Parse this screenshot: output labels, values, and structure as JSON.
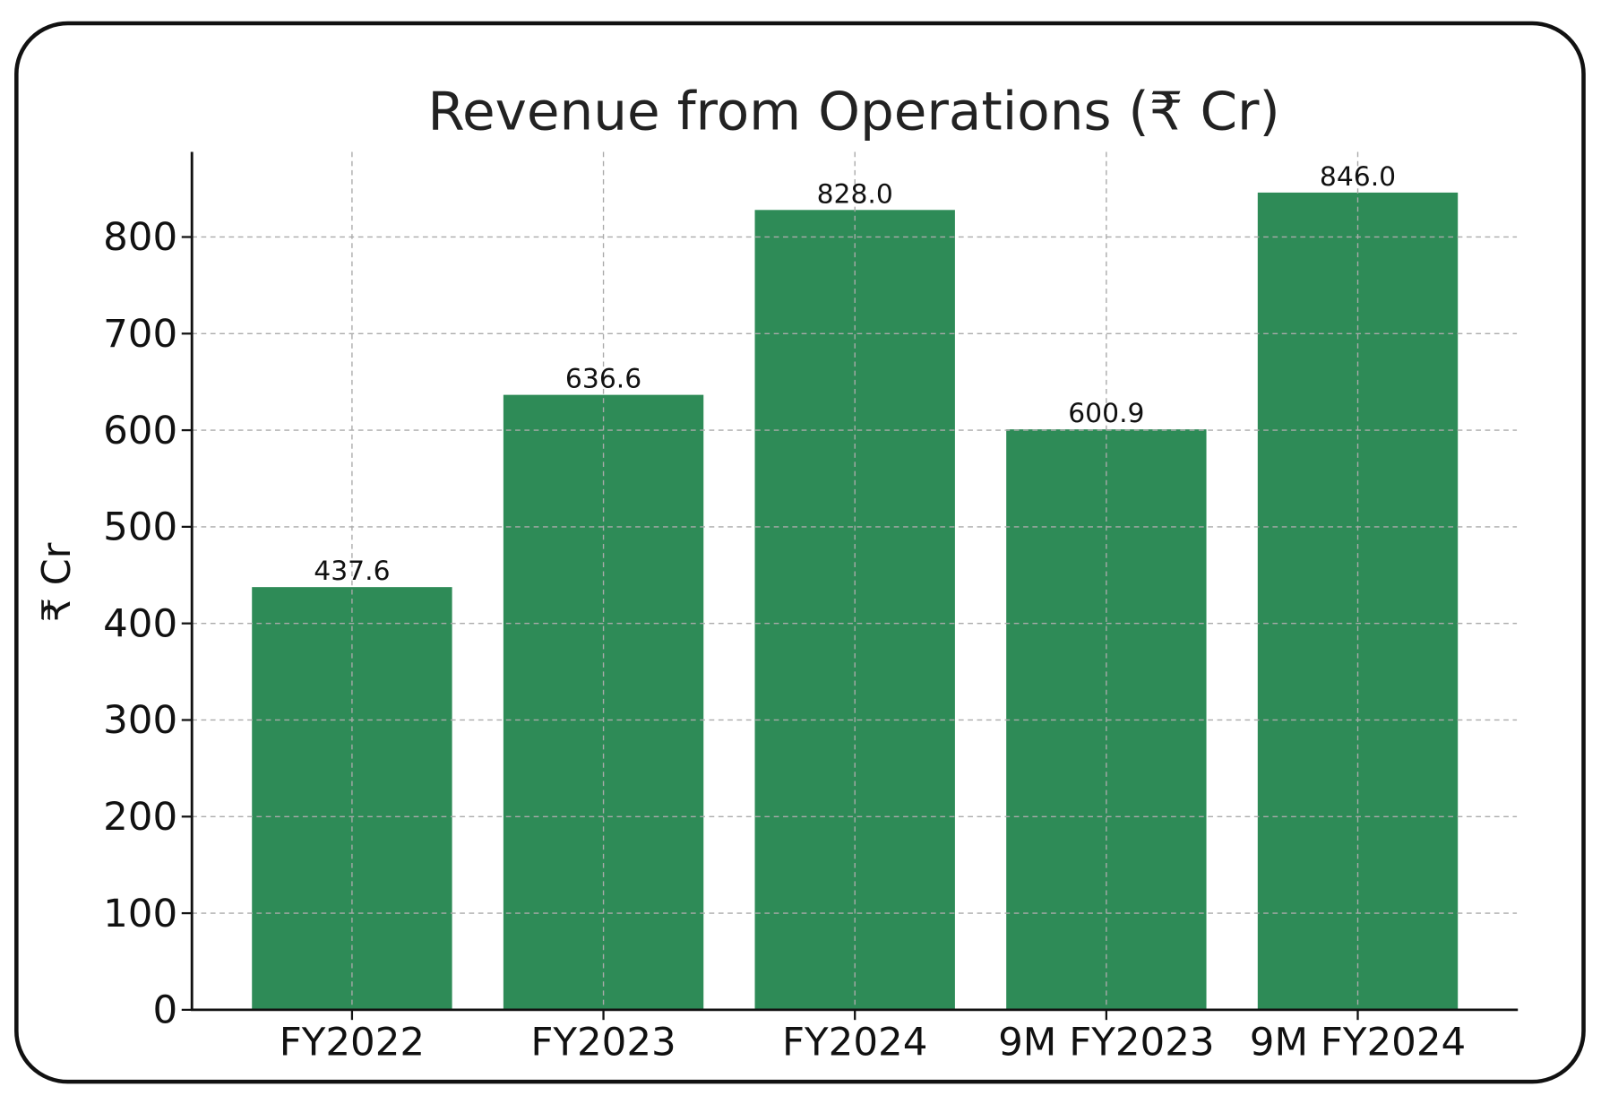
{
  "chart_data": {
    "type": "bar",
    "title": "Revenue from Operations (₹ Cr)",
    "xlabel": "",
    "ylabel": "₹ Cr",
    "categories": [
      "FY2022",
      "FY2023",
      "FY2024",
      "9M FY2023",
      "9M FY2024"
    ],
    "values": [
      437.6,
      636.6,
      828.0,
      600.9,
      846.0
    ],
    "data_labels": [
      "437.6",
      "636.6",
      "828.0",
      "600.9",
      "846.0"
    ],
    "yticks": [
      0,
      100,
      200,
      300,
      400,
      500,
      600,
      700,
      800
    ],
    "ylim": [
      0,
      888
    ],
    "grid": true,
    "bar_color": "#2e8b57"
  }
}
